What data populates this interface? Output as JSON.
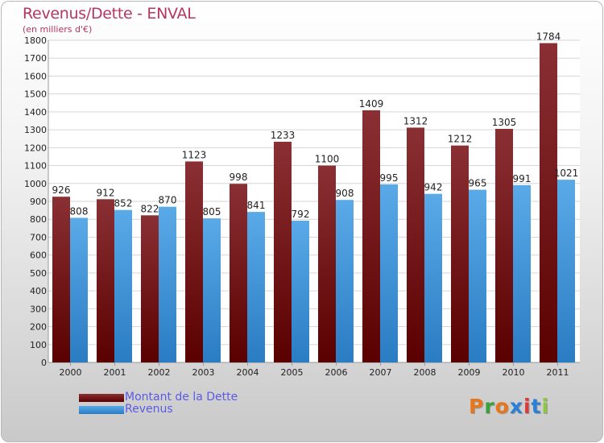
{
  "chart": {
    "title": "Revenus/Dette - ENVAL",
    "subtitle": "(en milliers d'€)"
  },
  "logo": {
    "text": "Proxiti",
    "letters": [
      "P",
      "r",
      "o",
      "x",
      "i",
      "t",
      "i"
    ],
    "colors": [
      "#e8761c",
      "#3aa13a",
      "#e8761c",
      "#2a7fd6",
      "#d93a3a",
      "#2a7fd6",
      "#8dc63f"
    ]
  },
  "colors": {
    "dette_top": "#8a3034",
    "dette_bottom": "#5b0000",
    "revenus_top": "#5aaae8",
    "revenus_bottom": "#2a7cc3",
    "title": "#b5365e",
    "legend_text": "#5a5ae6"
  },
  "chart_data": {
    "type": "bar",
    "title": "Revenus/Dette - ENVAL",
    "subtitle": "(en milliers d'€)",
    "categories": [
      "2000",
      "2001",
      "2002",
      "2003",
      "2004",
      "2005",
      "2006",
      "2007",
      "2008",
      "2009",
      "2010",
      "2011"
    ],
    "series": [
      {
        "name": "Montant de la Dette",
        "values": [
          926,
          912,
          822,
          1123,
          998,
          1233,
          1100,
          1409,
          1312,
          1212,
          1305,
          1784
        ]
      },
      {
        "name": "Revenus",
        "values": [
          808,
          852,
          870,
          805,
          841,
          792,
          908,
          995,
          942,
          965,
          991,
          1021
        ]
      }
    ],
    "yticks": [
      0,
      100,
      200,
      300,
      400,
      500,
      600,
      700,
      800,
      900,
      1000,
      1100,
      1200,
      1300,
      1400,
      1500,
      1600,
      1700,
      1800
    ],
    "ylim": [
      0,
      1800
    ],
    "grid": true,
    "legend_position": "bottom-left"
  }
}
